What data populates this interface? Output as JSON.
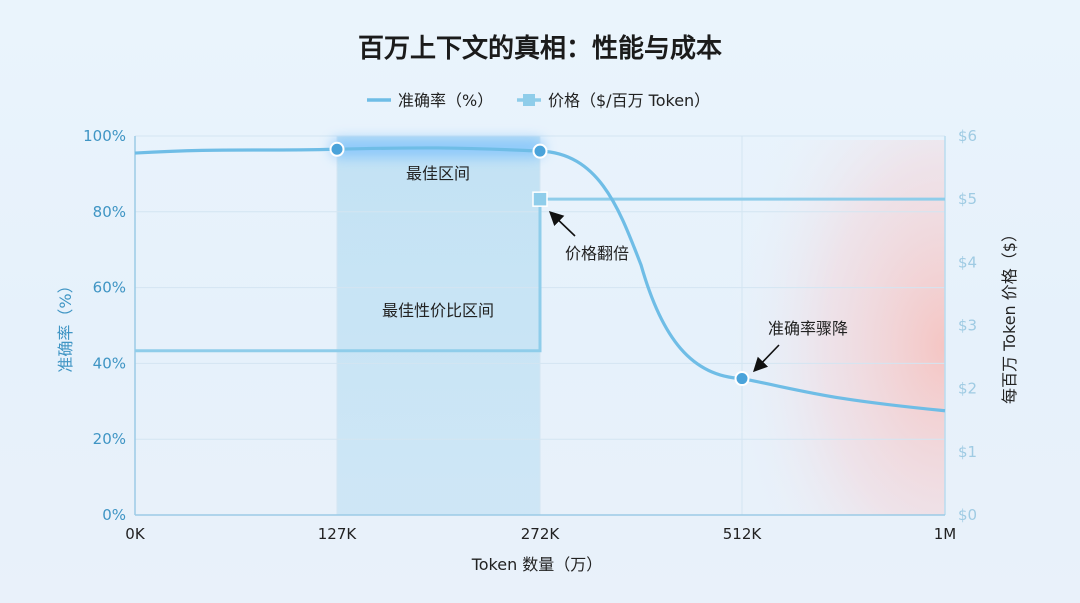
{
  "chart_data": {
    "type": "line",
    "title": "百万上下文的真相：性能与成本",
    "xlabel": "Token 数量（万）",
    "ylabel_left": "准确率（%）",
    "ylabel_right": "每百万 Token 价格（$）",
    "x_ticks": [
      "0K",
      "127K",
      "272K",
      "512K",
      "1M"
    ],
    "y_left_ticks": [
      "0%",
      "20%",
      "40%",
      "60%",
      "80%",
      "100%"
    ],
    "y_right_ticks": [
      "$0",
      "$1",
      "$2",
      "$3",
      "$4",
      "$5",
      "$6"
    ],
    "ylim_left": [
      0,
      100
    ],
    "ylim_right": [
      0,
      6
    ],
    "grid": true,
    "legend_position": "top-center",
    "series": [
      {
        "name": "准确率（%）",
        "axis": "left",
        "color": "#6fbde6",
        "points": [
          {
            "x": "0K",
            "y": 95.5
          },
          {
            "x": "127K",
            "y": 96.5
          },
          {
            "x": "272K",
            "y": 96.0
          },
          {
            "x": "512K",
            "y": 36.0
          },
          {
            "x": "1M",
            "y": 27.5
          }
        ]
      },
      {
        "name": "价格（$/百万 Token）",
        "axis": "right",
        "color": "#8fcdea",
        "points": [
          {
            "x": "0K",
            "y": 2.6
          },
          {
            "x": "272K",
            "y": 2.6
          },
          {
            "x": "272K",
            "y": 5.0
          },
          {
            "x": "1M",
            "y": 5.0
          }
        ]
      }
    ],
    "regions": [
      {
        "label": "最佳区间",
        "from": "127K",
        "to": "272K"
      },
      {
        "label": "最佳性价比区间",
        "from": "127K",
        "to": "272K"
      }
    ],
    "annotations": [
      {
        "text": "价格翻倍"
      },
      {
        "text": "准确率骤降"
      }
    ]
  }
}
